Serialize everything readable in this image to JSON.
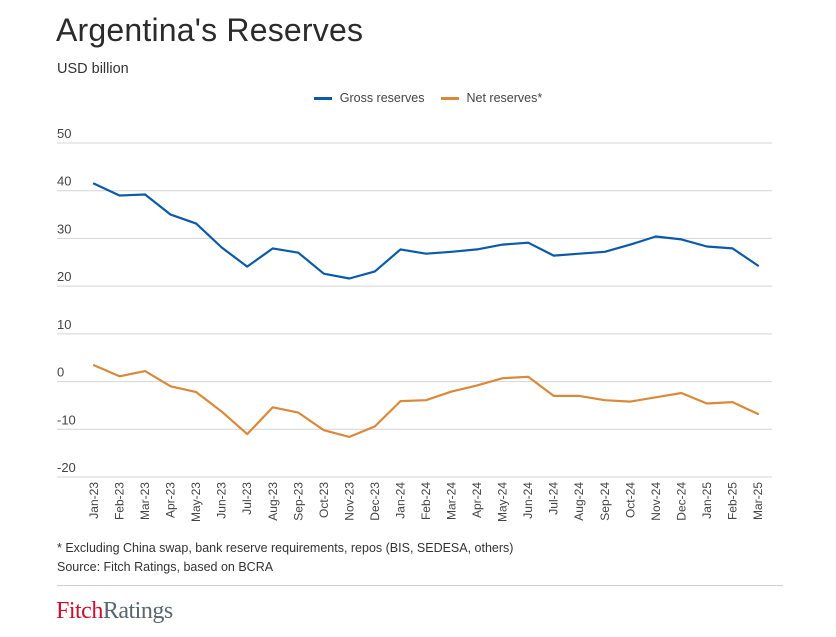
{
  "header": {
    "title": "Argentina's Reserves",
    "subtitle": "USD billion"
  },
  "legend": [
    {
      "label": "Gross reserves",
      "color": "#0b5aa8"
    },
    {
      "label": "Net reserves*",
      "color": "#d9893a"
    }
  ],
  "footer": {
    "note": "* Excluding China swap, bank reserve requirements, repos (BIS, SEDESA, others)",
    "source": "Source: Fitch Ratings, based on BCRA",
    "logo_part1": "Fitch",
    "logo_part2": "Ratings"
  },
  "chart_data": {
    "type": "line",
    "title": "Argentina's Reserves",
    "subtitle": "USD billion",
    "xlabel": "",
    "ylabel": "USD billion",
    "ylim": [
      -20,
      50
    ],
    "yticks": [
      50,
      40,
      30,
      20,
      10,
      0,
      -10,
      -20
    ],
    "grid": true,
    "legend_position": "top-center",
    "categories": [
      "Jan-23",
      "Feb-23",
      "Mar-23",
      "Apr-23",
      "May-23",
      "Jun-23",
      "Jul-23",
      "Aug-23",
      "Sep-23",
      "Oct-23",
      "Nov-23",
      "Dec-23",
      "Jan-24",
      "Feb-24",
      "Mar-24",
      "Apr-24",
      "May-24",
      "Jun-24",
      "Jul-24",
      "Aug-24",
      "Sep-24",
      "Oct-24",
      "Nov-24",
      "Dec-24",
      "Jan-25",
      "Feb-25",
      "Mar-25"
    ],
    "series": [
      {
        "name": "Gross reserves",
        "color": "#0b5aa8",
        "values": [
          41.5,
          39.0,
          39.2,
          35.0,
          33.1,
          28.1,
          24.1,
          27.9,
          27.0,
          22.6,
          21.6,
          23.1,
          27.7,
          26.8,
          27.2,
          27.7,
          28.7,
          29.1,
          26.4,
          26.8,
          27.2,
          28.7,
          30.4,
          29.8,
          28.3,
          27.9,
          24.3
        ]
      },
      {
        "name": "Net reserves*",
        "color": "#d9893a",
        "values": [
          3.4,
          1.1,
          2.2,
          -1.0,
          -2.2,
          -6.3,
          -11.0,
          -5.4,
          -6.5,
          -10.2,
          -11.6,
          -9.4,
          -4.1,
          -3.9,
          -2.1,
          -0.8,
          0.7,
          1.0,
          -3.0,
          -3.0,
          -3.9,
          -4.2,
          -3.3,
          -2.4,
          -4.6,
          -4.3,
          -6.8
        ]
      }
    ]
  }
}
